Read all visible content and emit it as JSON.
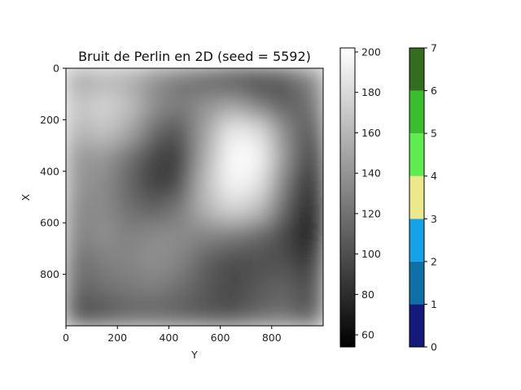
{
  "chart_data": {
    "type": "heatmap",
    "title": "Bruit de Perlin en 2D (seed = 5592)",
    "xlabel": "Y",
    "ylabel": "X",
    "x_ticks": [
      "0",
      "200",
      "400",
      "600",
      "800"
    ],
    "y_ticks": [
      "0",
      "200",
      "400",
      "600",
      "800"
    ],
    "xlim": [
      0,
      1000
    ],
    "ylim": [
      0,
      1000
    ],
    "y_inverted": true,
    "value_grid_note_hidden": "",
    "values": [
      [
        150,
        160,
        155,
        135,
        122,
        112,
        100,
        95,
        102,
        128
      ],
      [
        168,
        178,
        165,
        135,
        125,
        140,
        150,
        128,
        110,
        118
      ],
      [
        158,
        168,
        150,
        112,
        102,
        150,
        192,
        185,
        135,
        100
      ],
      [
        140,
        142,
        118,
        92,
        88,
        155,
        202,
        198,
        140,
        82
      ],
      [
        140,
        135,
        112,
        88,
        98,
        165,
        198,
        188,
        125,
        72
      ],
      [
        132,
        135,
        118,
        110,
        125,
        160,
        178,
        165,
        112,
        58
      ],
      [
        128,
        138,
        128,
        135,
        135,
        130,
        125,
        115,
        95,
        60
      ],
      [
        118,
        128,
        132,
        138,
        130,
        108,
        98,
        100,
        100,
        82
      ],
      [
        112,
        120,
        125,
        128,
        118,
        105,
        95,
        105,
        112,
        96
      ],
      [
        98,
        102,
        112,
        112,
        108,
        102,
        100,
        112,
        118,
        102
      ]
    ],
    "colorbar_gray": {
      "range": [
        54,
        202
      ],
      "ticks": [
        "60",
        "80",
        "100",
        "120",
        "140",
        "160",
        "180",
        "200"
      ],
      "tick_values": [
        60,
        80,
        100,
        120,
        140,
        160,
        180,
        200
      ]
    },
    "colorbar_classes": {
      "range": [
        0,
        7
      ],
      "ticks": [
        "0",
        "1",
        "2",
        "3",
        "4",
        "5",
        "6",
        "7"
      ],
      "colors": [
        "#151a7a",
        "#0f6fa8",
        "#16a2e8",
        "#ece98a",
        "#5fec4e",
        "#3abd2f",
        "#336d1f",
        "#ffffff"
      ]
    }
  }
}
